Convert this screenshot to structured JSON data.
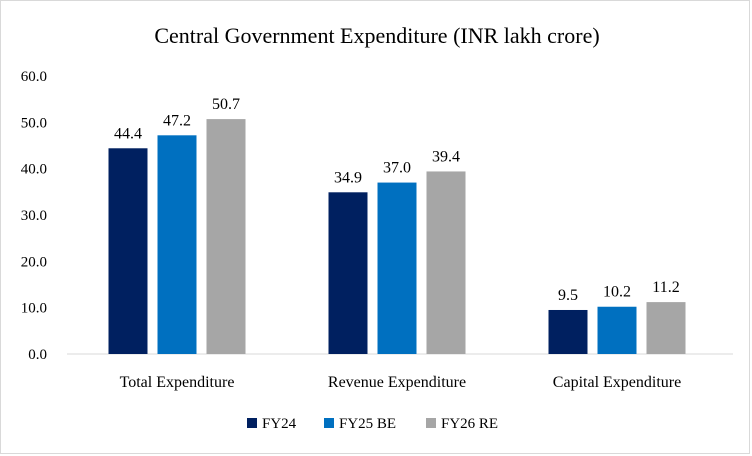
{
  "chart_data": {
    "type": "bar",
    "title": "Central Government Expenditure  (INR lakh crore)",
    "xlabel": "",
    "ylabel": "",
    "categories": [
      "Total Expenditure",
      "Revenue Expenditure",
      "Capital Expenditure"
    ],
    "series": [
      {
        "name": "FY24",
        "values": [
          44.4,
          34.9,
          9.5
        ],
        "color": "#002060"
      },
      {
        "name": "FY25 BE",
        "values": [
          47.2,
          37.0,
          10.2
        ],
        "color": "#0070C0"
      },
      {
        "name": "FY26 RE",
        "values": [
          50.7,
          39.4,
          11.2
        ],
        "color": "#A6A6A6"
      }
    ],
    "ylim": [
      0,
      60
    ],
    "yticks": [
      0,
      10,
      20,
      30,
      40,
      50,
      60
    ],
    "ytick_labels": [
      "0.0",
      "10.0",
      "20.0",
      "30.0",
      "40.0",
      "50.0",
      "60.0"
    ],
    "data_labels": [
      [
        "44.4",
        "34.9",
        "9.5"
      ],
      [
        "47.2",
        "37.0",
        "10.2"
      ],
      [
        "50.7",
        "39.4",
        "11.2"
      ]
    ],
    "grid": false,
    "legend": "bottom",
    "axis_color": "#d9d9d9"
  }
}
